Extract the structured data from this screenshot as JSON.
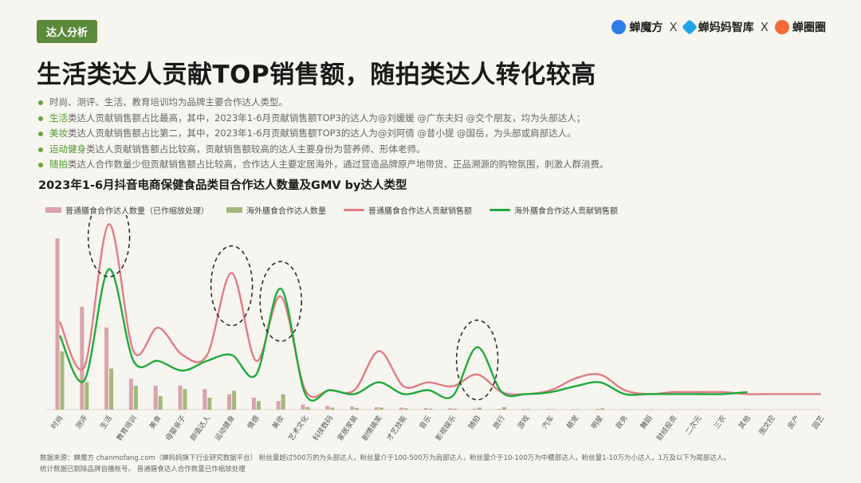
{
  "tag": "达人分析",
  "brands": [
    {
      "name": "蝉魔方",
      "icon": "chanmofang-logo-icon",
      "color": "#2b7de9"
    },
    {
      "name": "蝉妈妈智库",
      "icon": "chanmama-logo-icon",
      "color": "#1fa4e8"
    },
    {
      "name": "蝉圈圈",
      "icon": "chanquanquan-logo-icon",
      "color": "#f26a3a"
    }
  ],
  "brand_separator": "X",
  "title": "生活类达人贡献TOP销售额，随拍类达人转化较高",
  "bullets": [
    {
      "kw": "",
      "text": "时尚、测评、生活、教育培训均为品牌主要合作达人类型。"
    },
    {
      "kw": "生活",
      "text": "类达人贡献销售额占比最高，其中，2023年1-6月贡献销售额TOP3的达人为@刘媛媛 @广东夫妇 @交个朋友，均为头部达人；"
    },
    {
      "kw": "美妆",
      "text": "类达人贡献销售额占比第二，其中，2023年1-6月贡献销售额TOP3的达人为@刘阿倩 @昔小提 @国岳，为头部或肩部达人。"
    },
    {
      "kw": "运动健身",
      "text": "类达人贡献销售额占比较高，贡献销售额较高的达人主要身份为营养师、形体老师。"
    },
    {
      "kw": "随拍",
      "text": "类达人合作数量少但贡献销售额占比较高，合作达人主要定居海外，通过营造品牌原产地带货、正品溯源的购物氛围，刺激人群消费。"
    }
  ],
  "colors": {
    "accent": "#5c8a3c",
    "bar_domestic": "#d9a3aa",
    "bar_overseas": "#a3b77e",
    "line_domestic": "#e07c84",
    "line_overseas": "#1faa3c"
  },
  "chart_data": {
    "type": "bar+line",
    "title": "2023年1-6月抖音电商保健食品类目合作达人数量及GMV by达人类型",
    "categories": [
      "时尚",
      "测评",
      "生活",
      "教育培训",
      "美食",
      "母婴亲子",
      "颜值达人",
      "运动健身",
      "情感",
      "美妆",
      "艺术文化",
      "科技数码",
      "家居家装",
      "剧情搞笑",
      "才艺技能",
      "音乐",
      "影视娱乐",
      "随拍",
      "旅行",
      "游戏",
      "汽车",
      "萌宠",
      "明星",
      "政务",
      "舞蹈",
      "财经投资",
      "二次元",
      "三农",
      "其他",
      "图文控",
      "房产",
      "园艺"
    ],
    "series": [
      {
        "name": "普通膳食合作达人数量（已作缩放处理）",
        "kind": "bar",
        "values": [
          100,
          60,
          48,
          18,
          14,
          14,
          12,
          9,
          7,
          5,
          3,
          2.2,
          1.8,
          1.5,
          1.2,
          1,
          0.8,
          0.6,
          0.5,
          0.4,
          0.35,
          0.3,
          0.5,
          0.2,
          0.2,
          0.15,
          0.1,
          0.1,
          0.3,
          0.1,
          0.1,
          0.1
        ]
      },
      {
        "name": "海外膳食合作达人数量",
        "kind": "bar",
        "values": [
          34,
          16,
          24,
          14,
          8,
          12,
          7,
          11,
          5,
          9,
          1.5,
          1.2,
          1,
          1.2,
          0.8,
          0.6,
          0.6,
          1.2,
          1.5,
          0.4,
          0.3,
          0.3,
          0.8,
          0.2,
          0.2,
          0.15,
          0.1,
          0.1,
          0.2,
          0,
          0,
          0
        ]
      },
      {
        "name": "普通膳食合作达人贡献销售额",
        "kind": "line",
        "values": [
          45,
          22,
          95,
          30,
          42,
          28,
          28,
          70,
          25,
          58,
          10,
          10,
          10,
          30,
          12,
          14,
          12,
          18,
          9,
          8,
          10,
          16,
          18,
          10,
          8,
          9,
          9,
          9,
          8,
          8,
          8,
          8
        ]
      },
      {
        "name": "海外膳食合作达人贡献销售额",
        "kind": "line",
        "values": [
          38,
          15,
          72,
          25,
          25,
          20,
          25,
          28,
          18,
          62,
          8,
          10,
          8,
          14,
          8,
          10,
          7,
          32,
          9,
          8,
          9,
          12,
          14,
          8,
          8,
          8,
          8,
          8,
          9,
          null,
          null,
          null
        ]
      }
    ],
    "ylim": [
      0,
      100
    ],
    "grid": false,
    "legend_position": "top",
    "highlighted_categories": [
      "生活",
      "运动健身",
      "美妆",
      "随拍"
    ]
  },
  "footer": {
    "line1": "数据来源：蝉魔方 chanmofang.com（蝉妈妈旗下行业研究数据平台） 粉丝量超过500万的为头部达人，粉丝量介于100-500万为肩部达人，粉丝量介于10-100万为中腰部达人，粉丝量1-10万为小达人，1万及以下为尾部达人。",
    "line2": "统计数据已剔除品牌自播账号。 普通膳食达人合作数量已作缩放处理"
  }
}
